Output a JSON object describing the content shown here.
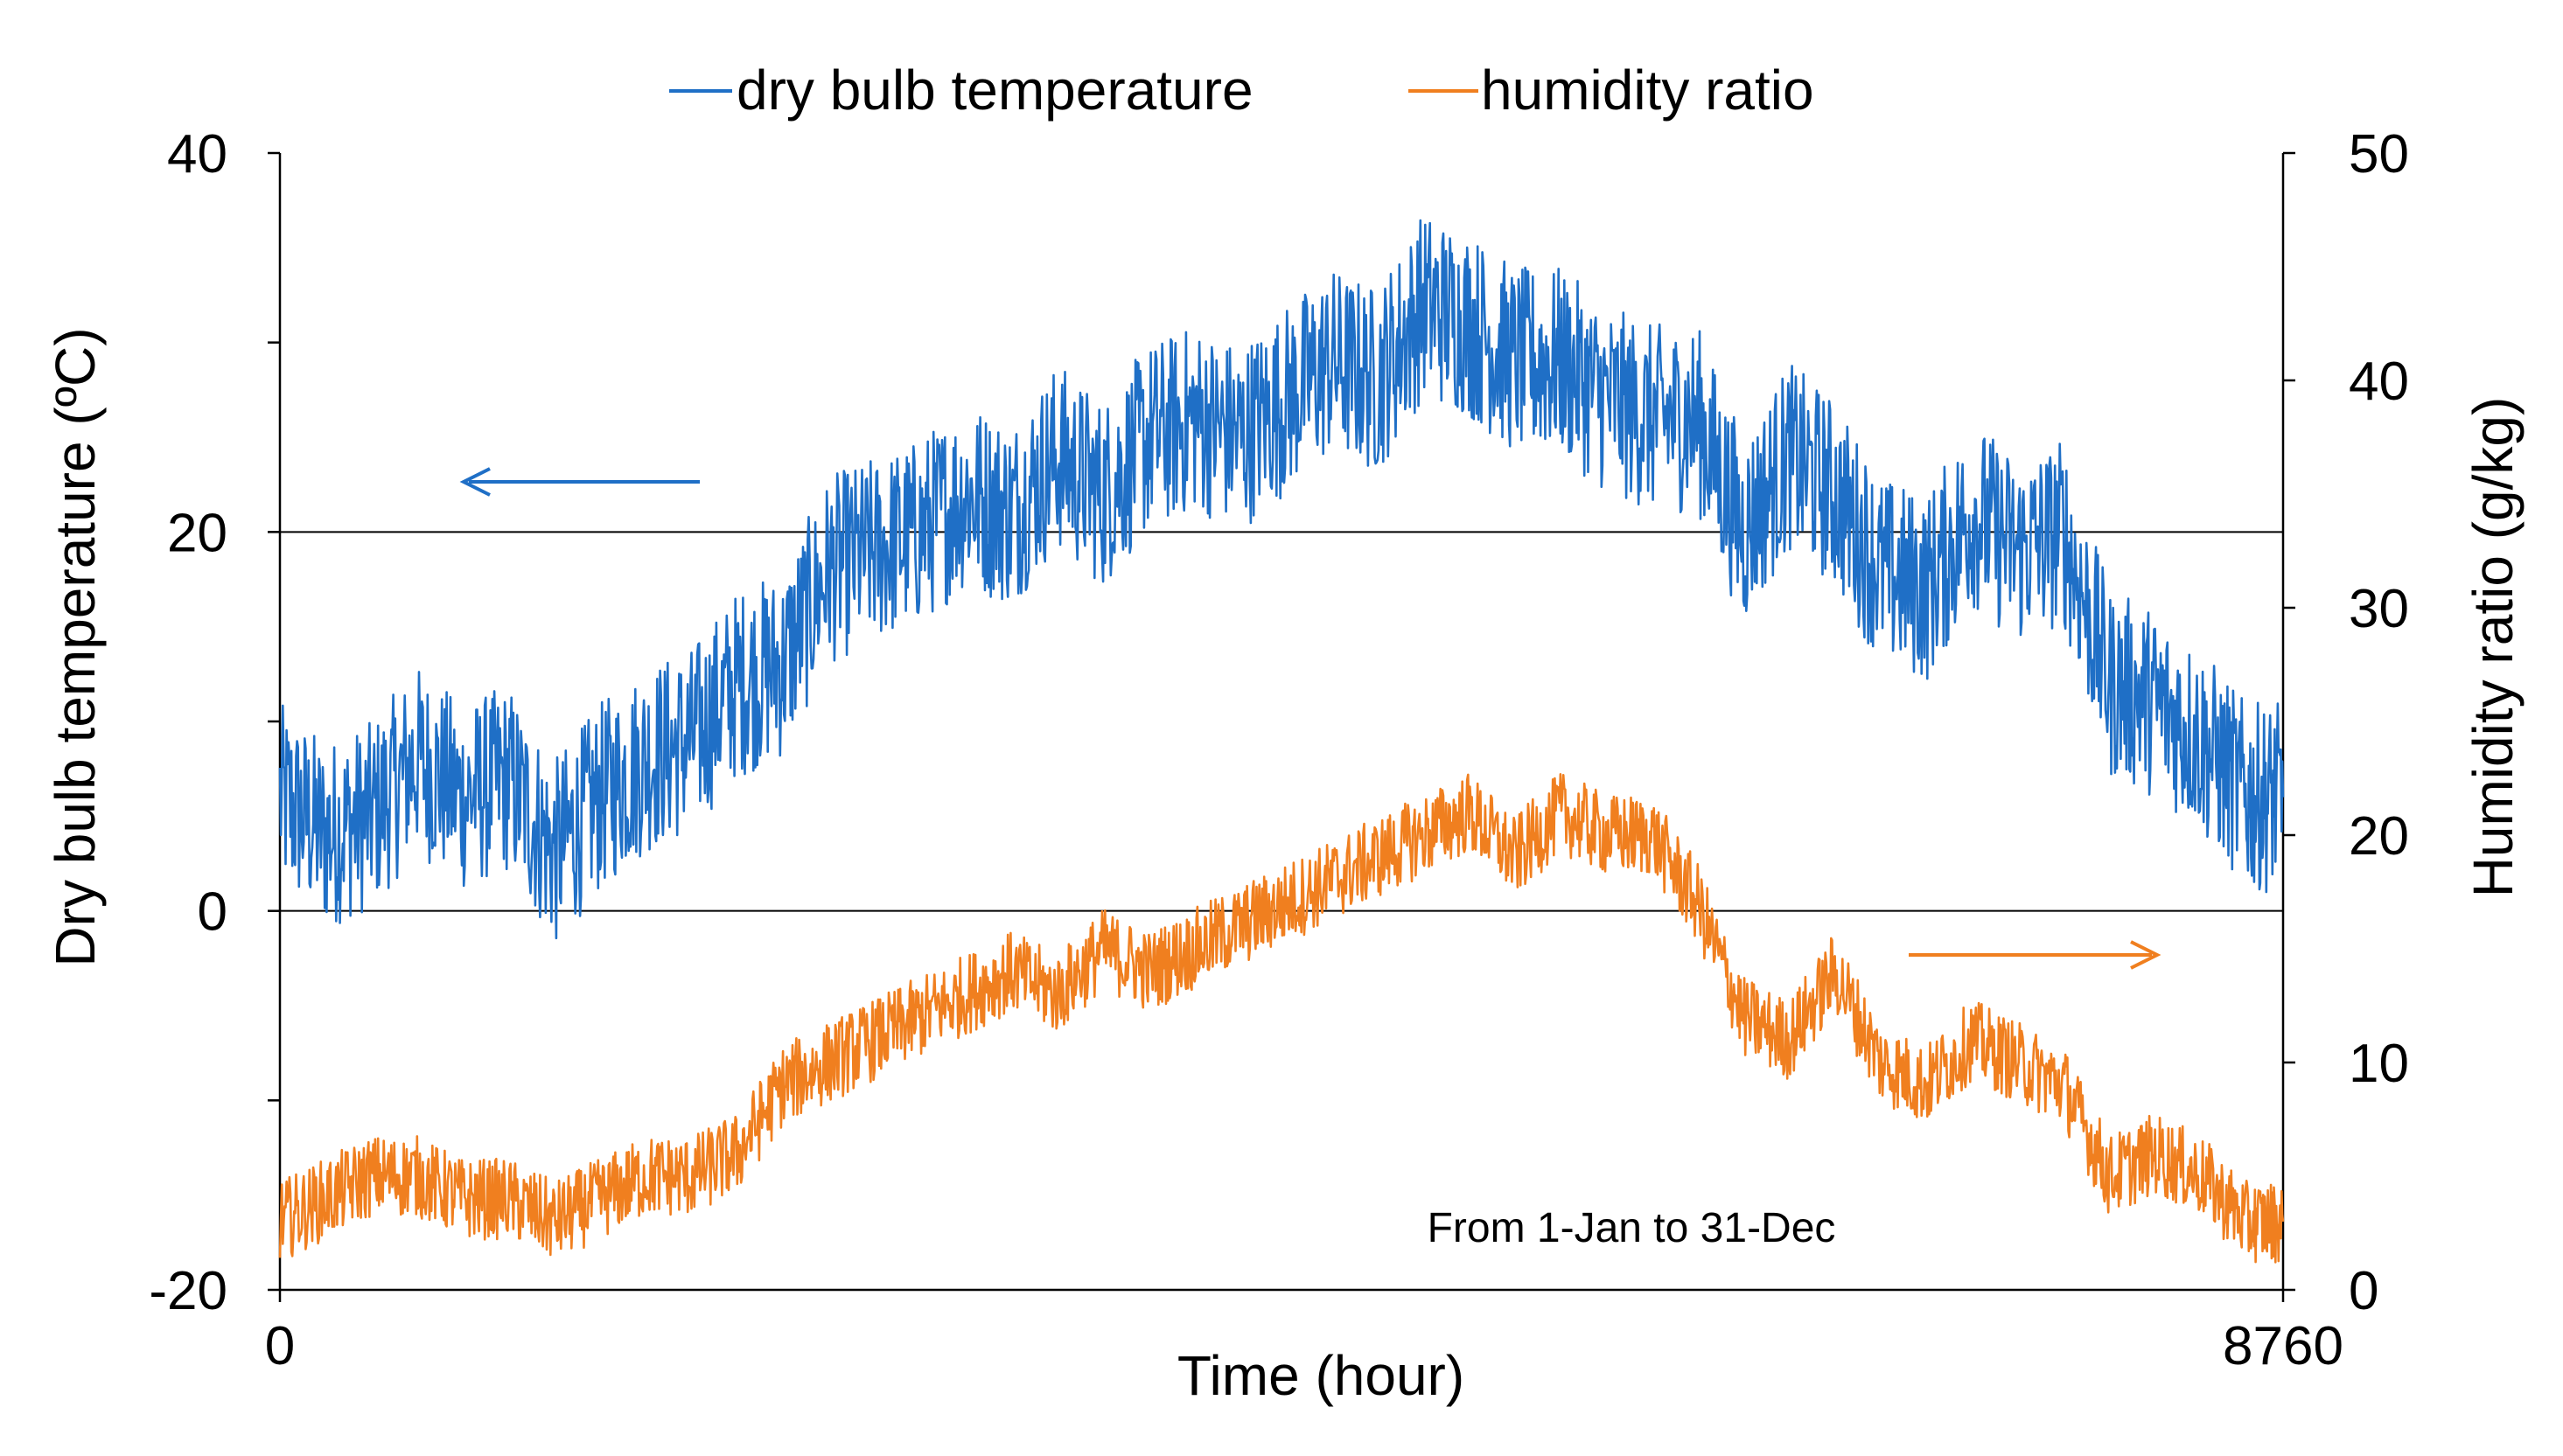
{
  "chart_data": {
    "type": "line",
    "title": "",
    "xlabel": "Time (hour)",
    "ylabel": "Dry bulb temperature (ºC)",
    "y2label": "Humidity ratio (g/kg)",
    "xlim": [
      0,
      8760
    ],
    "ylim": [
      -20,
      40
    ],
    "y2lim": [
      0,
      50
    ],
    "xticks": [
      "0",
      "8760"
    ],
    "yticks": [
      "-20",
      "0",
      "20",
      "40"
    ],
    "y2ticks": [
      "0",
      "10",
      "20",
      "30",
      "40",
      "50"
    ],
    "gridlines_at_y": [
      0,
      20
    ],
    "legend": {
      "position": "top-center",
      "entries": [
        "dry bulb temperature",
        "humidity ratio"
      ]
    },
    "annotation": "From 1-Jan to 31-Dec",
    "colors": {
      "dry_bulb_temperature": "#1F6FC6",
      "humidity_ratio": "#F07F1F"
    },
    "series": [
      {
        "name": "dry bulb temperature",
        "axis": "left",
        "x": [
          0,
          200,
          400,
          600,
          800,
          1000,
          1200,
          1400,
          1600,
          1800,
          2000,
          2200,
          2400,
          2600,
          2800,
          3000,
          3200,
          3400,
          3600,
          3800,
          4000,
          4200,
          4400,
          4600,
          4800,
          5000,
          5200,
          5400,
          5600,
          5800,
          6000,
          6200,
          6400,
          6600,
          6800,
          7000,
          7200,
          7400,
          7600,
          7800,
          8000,
          8200,
          8400,
          8600,
          8760
        ],
        "values": [
          6,
          4,
          5,
          8,
          6,
          7,
          3,
          6,
          8,
          9,
          12,
          13,
          18,
          19,
          20,
          22,
          21,
          24,
          22,
          25,
          26,
          25,
          27,
          29,
          28,
          32,
          31,
          29,
          29,
          27,
          26,
          26,
          20,
          24,
          22,
          18,
          17,
          21,
          19,
          20,
          12,
          11,
          9,
          6,
          6
        ]
      },
      {
        "name": "humidity ratio",
        "axis": "right",
        "x": [
          0,
          200,
          400,
          600,
          800,
          1000,
          1200,
          1400,
          1600,
          1800,
          2000,
          2200,
          2400,
          2600,
          2800,
          3000,
          3200,
          3400,
          3600,
          3800,
          4000,
          4200,
          4400,
          4600,
          4800,
          5000,
          5200,
          5400,
          5600,
          5800,
          6000,
          6200,
          6400,
          6600,
          6800,
          7000,
          7200,
          7400,
          7600,
          7800,
          8000,
          8200,
          8400,
          8600,
          8760
        ],
        "values": [
          3,
          4,
          5,
          5,
          4,
          4,
          3,
          4,
          5,
          5,
          6,
          9,
          10,
          11,
          12,
          13,
          14,
          13,
          15,
          14,
          15,
          16,
          17,
          18,
          19,
          20,
          21,
          19,
          21,
          20,
          20,
          17,
          12,
          11,
          14,
          10,
          9,
          11,
          10,
          9,
          5,
          6,
          5,
          3,
          3
        ]
      }
    ]
  }
}
